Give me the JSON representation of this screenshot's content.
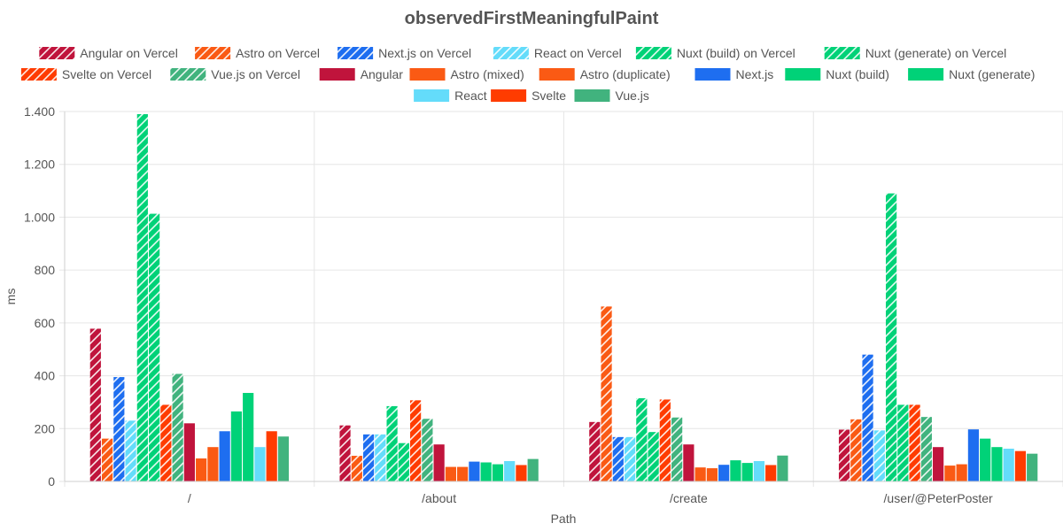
{
  "chart_data": {
    "type": "bar",
    "title": "observedFirstMeaningfulPaint",
    "xlabel": "Path",
    "ylabel": "ms",
    "ylim": [
      0,
      1400
    ],
    "yticks": [
      0,
      200,
      400,
      600,
      800,
      1000,
      1200,
      1400
    ],
    "ytick_labels": [
      "0",
      "200",
      "400",
      "600",
      "800",
      "1.000",
      "1.200",
      "1.400"
    ],
    "grid": true,
    "legend_position": "top",
    "categories": [
      "/",
      "/about",
      "/create",
      "/user/@PeterPoster"
    ],
    "series": [
      {
        "name": "Angular on Vercel",
        "color": "#c0143c",
        "hatched": true,
        "values": [
          578,
          212,
          225,
          196
        ]
      },
      {
        "name": "Astro on Vercel",
        "color": "#fa5a14",
        "hatched": true,
        "values": [
          162,
          97,
          662,
          235
        ]
      },
      {
        "name": "Next.js on Vercel",
        "color": "#1e6ef0",
        "hatched": true,
        "values": [
          395,
          178,
          168,
          480
        ]
      },
      {
        "name": "React on Vercel",
        "color": "#64dcfa",
        "hatched": true,
        "values": [
          230,
          178,
          168,
          193
        ]
      },
      {
        "name": "Nuxt (build) on Vercel",
        "color": "#00d278",
        "hatched": true,
        "values": [
          1390,
          285,
          315,
          1090
        ]
      },
      {
        "name": "Nuxt (generate) on Vercel",
        "color": "#00d278",
        "hatched": true,
        "values": [
          1013,
          145,
          187,
          290
        ]
      },
      {
        "name": "Svelte on Vercel",
        "color": "#ff3c00",
        "hatched": true,
        "values": [
          290,
          307,
          310,
          290
        ]
      },
      {
        "name": "Vue.js on Vercel",
        "color": "#41b37e",
        "hatched": true,
        "values": [
          407,
          237,
          242,
          244
        ]
      },
      {
        "name": "Angular",
        "color": "#c0143c",
        "hatched": false,
        "values": [
          220,
          140,
          140,
          130
        ]
      },
      {
        "name": "Astro (mixed)",
        "color": "#fa5a14",
        "hatched": false,
        "values": [
          87,
          55,
          53,
          60
        ]
      },
      {
        "name": "Astro (duplicate)",
        "color": "#fa5a14",
        "hatched": false,
        "values": [
          130,
          55,
          50,
          65
        ]
      },
      {
        "name": "Next.js",
        "color": "#1e6ef0",
        "hatched": false,
        "values": [
          190,
          75,
          63,
          197
        ]
      },
      {
        "name": "Nuxt (build)",
        "color": "#00d278",
        "hatched": false,
        "values": [
          265,
          72,
          80,
          162
        ]
      },
      {
        "name": "Nuxt (generate)",
        "color": "#00d278",
        "hatched": false,
        "values": [
          335,
          65,
          70,
          130
        ]
      },
      {
        "name": "React",
        "color": "#64dcfa",
        "hatched": false,
        "values": [
          130,
          77,
          77,
          124
        ]
      },
      {
        "name": "Svelte",
        "color": "#ff3c00",
        "hatched": false,
        "values": [
          190,
          62,
          62,
          115
        ]
      },
      {
        "name": "Vue.js",
        "color": "#41b37e",
        "hatched": false,
        "values": [
          170,
          85,
          98,
          105
        ]
      }
    ]
  }
}
